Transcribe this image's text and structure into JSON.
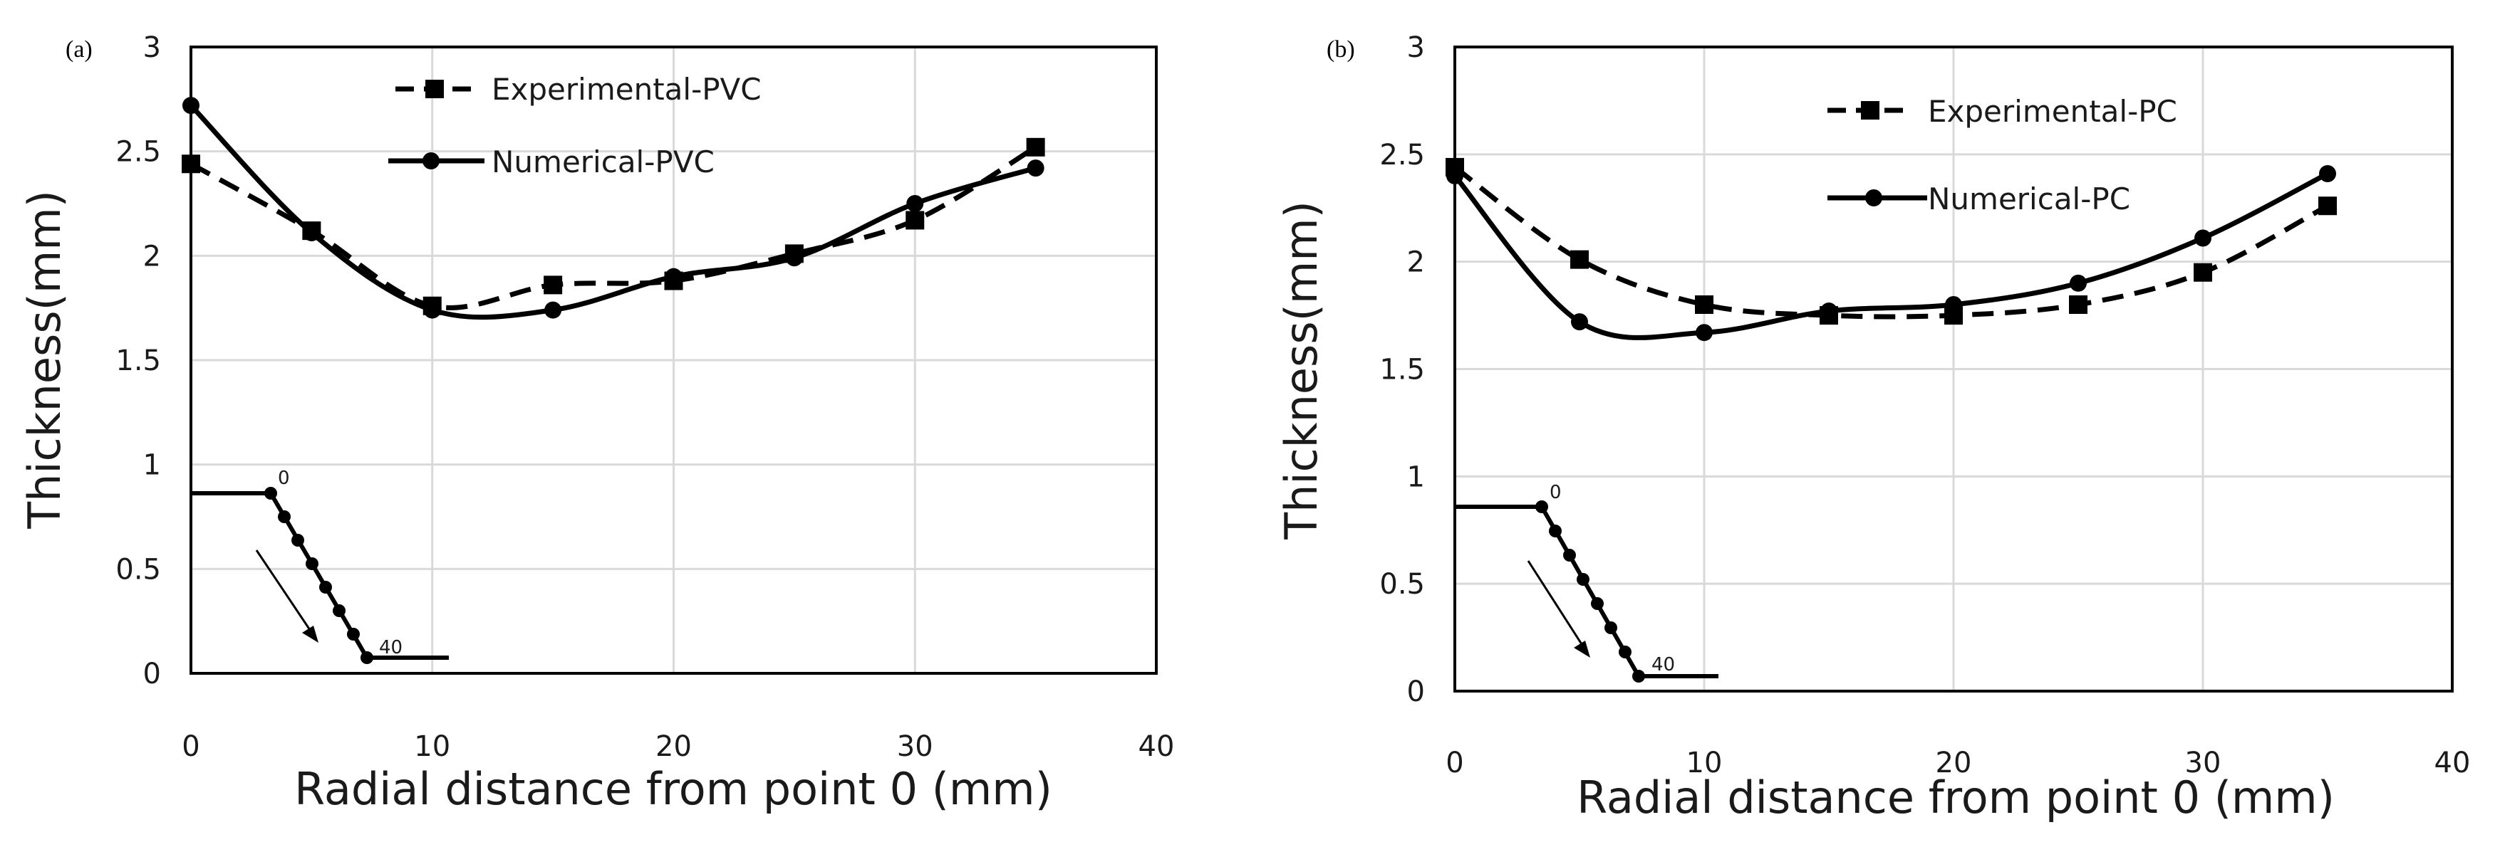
{
  "chart_data": [
    {
      "type": "line",
      "panel_label": "(a)",
      "title": "",
      "xlabel": "Radial distance from point 0 (mm)",
      "ylabel": "Thickness(mm)",
      "xlim": [
        0,
        40
      ],
      "ylim": [
        0,
        3
      ],
      "xticks": [
        "0",
        "10",
        "20",
        "30",
        "40"
      ],
      "yticks": [
        "0",
        "0.5",
        "1",
        "1.5",
        "2",
        "2.5",
        "3"
      ],
      "grid": true,
      "legend_position": "top-center",
      "series": [
        {
          "name": "Experimental-PVC",
          "marker": "square",
          "line_style": "dashed",
          "x": [
            0,
            5,
            10,
            15,
            20,
            25,
            30,
            35
          ],
          "values": [
            2.44,
            2.12,
            1.76,
            1.86,
            1.88,
            2.01,
            2.17,
            2.52
          ]
        },
        {
          "name": "Numerical-PVC",
          "marker": "circle",
          "line_style": "solid",
          "x": [
            0,
            5,
            10,
            15,
            20,
            25,
            30,
            35
          ],
          "values": [
            2.72,
            2.11,
            1.74,
            1.74,
            1.9,
            1.99,
            2.25,
            2.42
          ]
        }
      ],
      "inset": {
        "start_label": "0",
        "end_label": "40"
      }
    },
    {
      "type": "line",
      "panel_label": "(b)",
      "title": "",
      "xlabel": "Radial distance from point 0 (mm)",
      "ylabel": "Thickness(mm)",
      "xlim": [
        0,
        40
      ],
      "ylim": [
        0,
        3
      ],
      "xticks": [
        "0",
        "10",
        "20",
        "30",
        "40"
      ],
      "yticks": [
        "0",
        "0.5",
        "1",
        "1.5",
        "2",
        "2.5",
        "3"
      ],
      "grid": true,
      "legend_position": "top-center",
      "series": [
        {
          "name": "Experimental-PC",
          "marker": "square",
          "line_style": "dashed",
          "x": [
            0,
            5,
            10,
            15,
            20,
            25,
            30,
            35
          ],
          "values": [
            2.44,
            2.01,
            1.8,
            1.75,
            1.75,
            1.8,
            1.95,
            2.26
          ]
        },
        {
          "name": "Numerical-PC",
          "marker": "circle",
          "line_style": "solid",
          "x": [
            0,
            5,
            10,
            15,
            20,
            25,
            30,
            35
          ],
          "values": [
            2.4,
            1.72,
            1.67,
            1.77,
            1.8,
            1.9,
            2.11,
            2.41
          ]
        }
      ],
      "inset": {
        "start_label": "0",
        "end_label": "40"
      }
    }
  ]
}
